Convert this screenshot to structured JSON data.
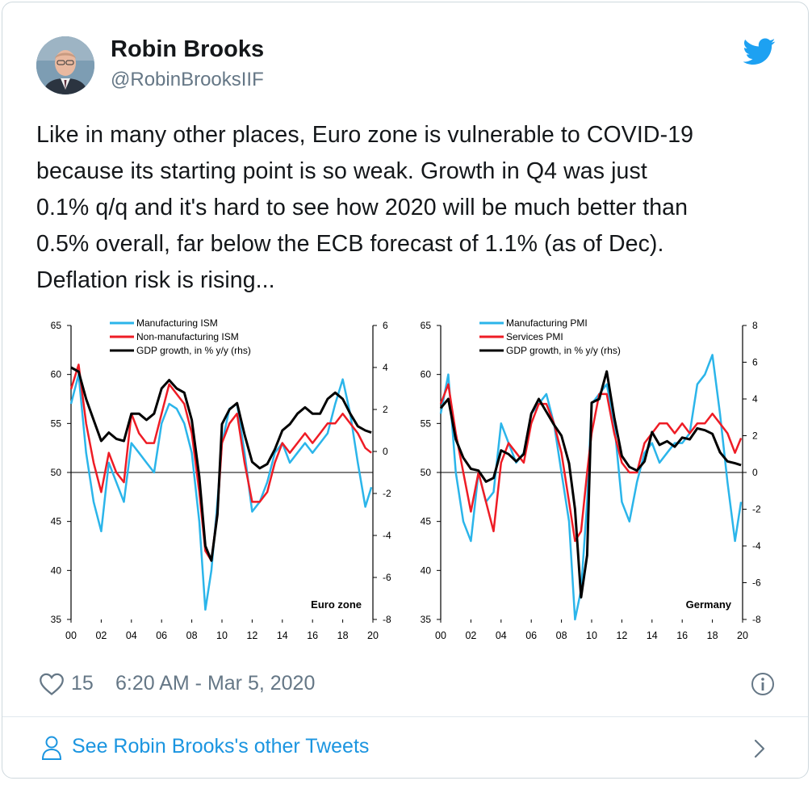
{
  "tweet": {
    "author_name": "Robin Brooks",
    "author_handle": "@RobinBrooksIIF",
    "text": "Like in many other places, Euro zone is vulnerable to COVID-19\nbecause its starting point is so weak. Growth in Q4 was just\n0.1% q/q and it's hard to see how 2020 will be much better than\n0.5% overall, far below the ECB forecast of 1.1% (as of Dec).\nDeflation risk is rising...",
    "likes": "15",
    "timestamp": "6:20 AM - Mar 5, 2020",
    "see_more": "See Robin Brooks's other Tweets"
  },
  "icons": {
    "brand": "twitter-bird-icon",
    "like": "heart-icon",
    "info": "info-icon",
    "profile": "person-icon",
    "more": "chevron-right-icon"
  },
  "colors": {
    "twitter_blue": "#1da1f2",
    "link": "#1b95e0",
    "muted": "#657786",
    "series_blue": "#2bb5ea",
    "series_red": "#ee1c25",
    "series_black": "#000000"
  },
  "chart_data": [
    {
      "type": "line",
      "title": "Euro zone",
      "x_ticks": [
        "00",
        "02",
        "04",
        "06",
        "08",
        "10",
        "12",
        "14",
        "16",
        "18",
        "20"
      ],
      "xlim": [
        2000,
        2020
      ],
      "ylim_left": [
        35,
        65
      ],
      "yticks_left": [
        "65",
        "60",
        "55",
        "50",
        "45",
        "40",
        "35"
      ],
      "ylim_right": [
        -8,
        6
      ],
      "yticks_right": [
        "6",
        "4",
        "2",
        "0",
        "-2",
        "-4",
        "-6",
        "-8"
      ],
      "series": [
        {
          "name": "Manufacturing ISM",
          "axis": "left",
          "color": "#2bb5ea",
          "x": [
            2000,
            2000.5,
            2001,
            2001.5,
            2002,
            2002.5,
            2003,
            2003.5,
            2004,
            2004.5,
            2005,
            2005.5,
            2006,
            2006.5,
            2007,
            2007.5,
            2008,
            2008.5,
            2008.9,
            2009.3,
            2009.7,
            2010,
            2010.5,
            2011,
            2011.5,
            2012,
            2012.5,
            2013,
            2013.5,
            2014,
            2014.5,
            2015,
            2015.5,
            2016,
            2016.5,
            2017,
            2017.5,
            2018,
            2018.5,
            2019,
            2019.5,
            2019.9
          ],
          "y": [
            57,
            60,
            52,
            47,
            44,
            51,
            49,
            47,
            53,
            52,
            51,
            50,
            55,
            57,
            56.5,
            55,
            52,
            45,
            36,
            40,
            47,
            53,
            56.5,
            57,
            52,
            46,
            47,
            49,
            52,
            53,
            51,
            52,
            53,
            52,
            53,
            54,
            57,
            59.5,
            56,
            51,
            46.5,
            48.5
          ]
        },
        {
          "name": "Non-manufacturing ISM",
          "axis": "left",
          "color": "#ee1c25",
          "x": [
            2000,
            2000.5,
            2001,
            2001.5,
            2002,
            2002.5,
            2003,
            2003.5,
            2004,
            2004.5,
            2005,
            2005.5,
            2006,
            2006.5,
            2007,
            2007.5,
            2008,
            2008.5,
            2008.9,
            2009.3,
            2009.7,
            2010,
            2010.5,
            2011,
            2011.5,
            2012,
            2012.5,
            2013,
            2013.5,
            2014,
            2014.5,
            2015,
            2015.5,
            2016,
            2016.5,
            2017,
            2017.5,
            2018,
            2018.5,
            2019,
            2019.5,
            2019.9
          ],
          "y": [
            58.5,
            61,
            55,
            51,
            48,
            52,
            50,
            49,
            56,
            54,
            53,
            53,
            56,
            59,
            58,
            57,
            54,
            48,
            42,
            41,
            46,
            53,
            55,
            56,
            51,
            47,
            47,
            48,
            51,
            53,
            52,
            53,
            54,
            53,
            54,
            55,
            55,
            56,
            55,
            54,
            52.5,
            52
          ]
        },
        {
          "name": "GDP growth, in % y/y (rhs)",
          "axis": "right",
          "color": "#000000",
          "x": [
            2000,
            2000.5,
            2001,
            2001.5,
            2002,
            2002.5,
            2003,
            2003.5,
            2004,
            2004.5,
            2005,
            2005.5,
            2006,
            2006.5,
            2007,
            2007.5,
            2008,
            2008.5,
            2008.9,
            2009.3,
            2009.7,
            2010,
            2010.5,
            2011,
            2011.5,
            2012,
            2012.5,
            2013,
            2013.5,
            2014,
            2014.5,
            2015,
            2015.5,
            2016,
            2016.5,
            2017,
            2017.5,
            2018,
            2018.5,
            2019,
            2019.5,
            2019.9
          ],
          "y": [
            4.0,
            3.8,
            2.5,
            1.5,
            0.5,
            0.9,
            0.6,
            0.5,
            1.8,
            1.8,
            1.5,
            1.8,
            3.0,
            3.4,
            3.0,
            2.8,
            1.5,
            -1.2,
            -4.5,
            -5.2,
            -3.0,
            1.3,
            2.0,
            2.3,
            0.8,
            -0.5,
            -0.8,
            -0.6,
            0.1,
            1.0,
            1.3,
            1.8,
            2.1,
            1.8,
            1.8,
            2.5,
            2.8,
            2.5,
            1.8,
            1.2,
            1.0,
            0.9
          ]
        }
      ]
    },
    {
      "type": "line",
      "title": "Germany",
      "x_ticks": [
        "00",
        "02",
        "04",
        "06",
        "08",
        "10",
        "12",
        "14",
        "16",
        "18",
        "20"
      ],
      "xlim": [
        2000,
        2020
      ],
      "ylim_left": [
        35,
        65
      ],
      "yticks_left": [
        "65",
        "60",
        "55",
        "50",
        "45",
        "40",
        "35"
      ],
      "ylim_right": [
        -8,
        8
      ],
      "yticks_right": [
        "8",
        "6",
        "4",
        "2",
        "0",
        "-2",
        "-4",
        "-6",
        "-8"
      ],
      "series": [
        {
          "name": "Manufacturing PMI",
          "axis": "left",
          "color": "#2bb5ea",
          "x": [
            2000,
            2000.5,
            2001,
            2001.5,
            2002,
            2002.5,
            2003,
            2003.5,
            2004,
            2004.5,
            2005,
            2005.5,
            2006,
            2006.5,
            2007,
            2007.5,
            2008,
            2008.5,
            2008.9,
            2009.3,
            2009.7,
            2010,
            2010.5,
            2011,
            2011.5,
            2012,
            2012.5,
            2013,
            2013.5,
            2014,
            2014.5,
            2015,
            2015.5,
            2016,
            2016.5,
            2017,
            2017.5,
            2018,
            2018.5,
            2019,
            2019.5,
            2019.9
          ],
          "y": [
            56,
            60,
            50,
            45,
            43,
            50,
            47,
            48,
            55,
            53,
            51,
            52,
            56,
            57,
            58,
            55,
            50,
            45,
            35,
            38,
            47,
            57,
            58,
            59,
            55,
            47,
            45,
            49,
            52,
            53,
            51,
            52,
            53,
            53,
            54,
            59,
            60,
            62,
            56,
            49,
            43,
            47
          ]
        },
        {
          "name": "Services PMI",
          "axis": "left",
          "color": "#ee1c25",
          "x": [
            2000,
            2000.5,
            2001,
            2001.5,
            2002,
            2002.5,
            2003,
            2003.5,
            2004,
            2004.5,
            2005,
            2005.5,
            2006,
            2006.5,
            2007,
            2007.5,
            2008,
            2008.5,
            2008.9,
            2009.3,
            2009.7,
            2010,
            2010.5,
            2011,
            2011.5,
            2012,
            2012.5,
            2013,
            2013.5,
            2014,
            2014.5,
            2015,
            2015.5,
            2016,
            2016.5,
            2017,
            2017.5,
            2018,
            2018.5,
            2019,
            2019.5,
            2019.9
          ],
          "y": [
            57,
            59,
            54,
            50,
            46,
            50,
            47,
            44,
            51,
            53,
            52,
            51,
            55,
            57,
            57,
            55,
            52,
            47,
            43,
            44,
            50,
            54,
            58,
            58,
            54,
            51,
            50,
            50,
            53,
            54,
            55,
            55,
            54,
            55,
            54,
            55,
            55,
            56,
            55,
            54,
            52,
            53.5
          ]
        },
        {
          "name": "GDP growth, in % y/y (rhs)",
          "axis": "right",
          "color": "#000000",
          "x": [
            2000,
            2000.5,
            2001,
            2001.5,
            2002,
            2002.5,
            2003,
            2003.5,
            2004,
            2004.5,
            2005,
            2005.5,
            2006,
            2006.5,
            2007,
            2007.5,
            2008,
            2008.5,
            2008.9,
            2009.3,
            2009.7,
            2010,
            2010.5,
            2011,
            2011.5,
            2012,
            2012.5,
            2013,
            2013.5,
            2014,
            2014.5,
            2015,
            2015.5,
            2016,
            2016.5,
            2017,
            2017.5,
            2018,
            2018.5,
            2019,
            2019.5,
            2019.9
          ],
          "y": [
            3.5,
            4.0,
            1.8,
            0.8,
            0.2,
            0.1,
            -0.5,
            -0.3,
            1.2,
            1.0,
            0.6,
            1.0,
            3.2,
            4.0,
            3.3,
            2.6,
            2.0,
            0.5,
            -2.0,
            -6.8,
            -4.5,
            3.8,
            4.0,
            5.5,
            3.0,
            0.9,
            0.3,
            0.1,
            0.6,
            2.2,
            1.5,
            1.7,
            1.4,
            1.9,
            1.8,
            2.4,
            2.3,
            2.1,
            1.1,
            0.6,
            0.5,
            0.4
          ]
        }
      ]
    }
  ]
}
